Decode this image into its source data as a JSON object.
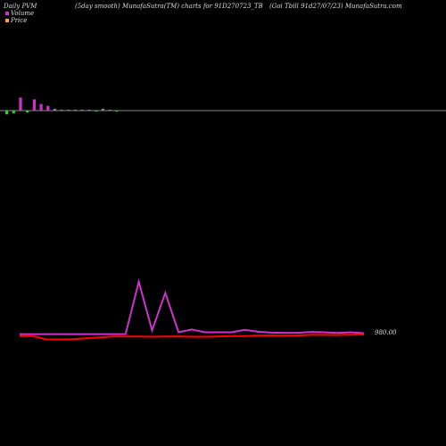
{
  "header": {
    "left": "Daily PVM",
    "center": "(5day smooth) MunafaSutra(TM) charts for 91D270723_TB",
    "right": "(Goi Tbill 91d27/07/23) MunafaSutra.com"
  },
  "legend": {
    "volume_label": "Volume",
    "price_label": "Price",
    "volume_color": "#cc33cc",
    "price_color": "#ff9966"
  },
  "colors": {
    "background": "#000000",
    "volume_up": "#cc33cc",
    "volume_down": "#33cc33",
    "volume_neutral": "#888888",
    "price_line": "#ff0000",
    "smooth_line": "#cc33cc",
    "baseline": "#888888"
  },
  "chart_data": [
    {
      "type": "bar",
      "name": "volume",
      "values": [
        -4,
        -3,
        14,
        -2,
        12,
        7,
        5,
        2,
        1,
        1,
        1,
        1,
        0.5,
        -1,
        2,
        1,
        -1
      ],
      "direction": [
        "down",
        "down",
        "up",
        "down",
        "up",
        "up",
        "up",
        "neutral",
        "neutral",
        "neutral",
        "neutral",
        "neutral",
        "neutral",
        "down",
        "neutral",
        "neutral",
        "down"
      ]
    },
    {
      "type": "line",
      "name": "price",
      "last_value_label": "980.00",
      "series": [
        {
          "values": [
            3,
            3,
            1.2,
            1.2,
            1.3,
            1.8,
            2.2,
            2.7,
            2.7,
            2.7,
            2.6,
            2.7,
            2.8,
            2.6,
            2.6,
            2.8,
            3.0,
            3.0,
            3.2,
            3.3,
            3.2,
            3.3,
            3.6,
            3.6,
            3.5,
            3.7,
            3.8
          ]
        },
        {
          "values": [
            4,
            4,
            4,
            4,
            4,
            4,
            4,
            4,
            4,
            32,
            6,
            26,
            5,
            6.5,
            5,
            5,
            5,
            6.3,
            5.3,
            4.8,
            4.7,
            4.7,
            5.2,
            5,
            4.6,
            5,
            4.5
          ]
        }
      ]
    }
  ]
}
